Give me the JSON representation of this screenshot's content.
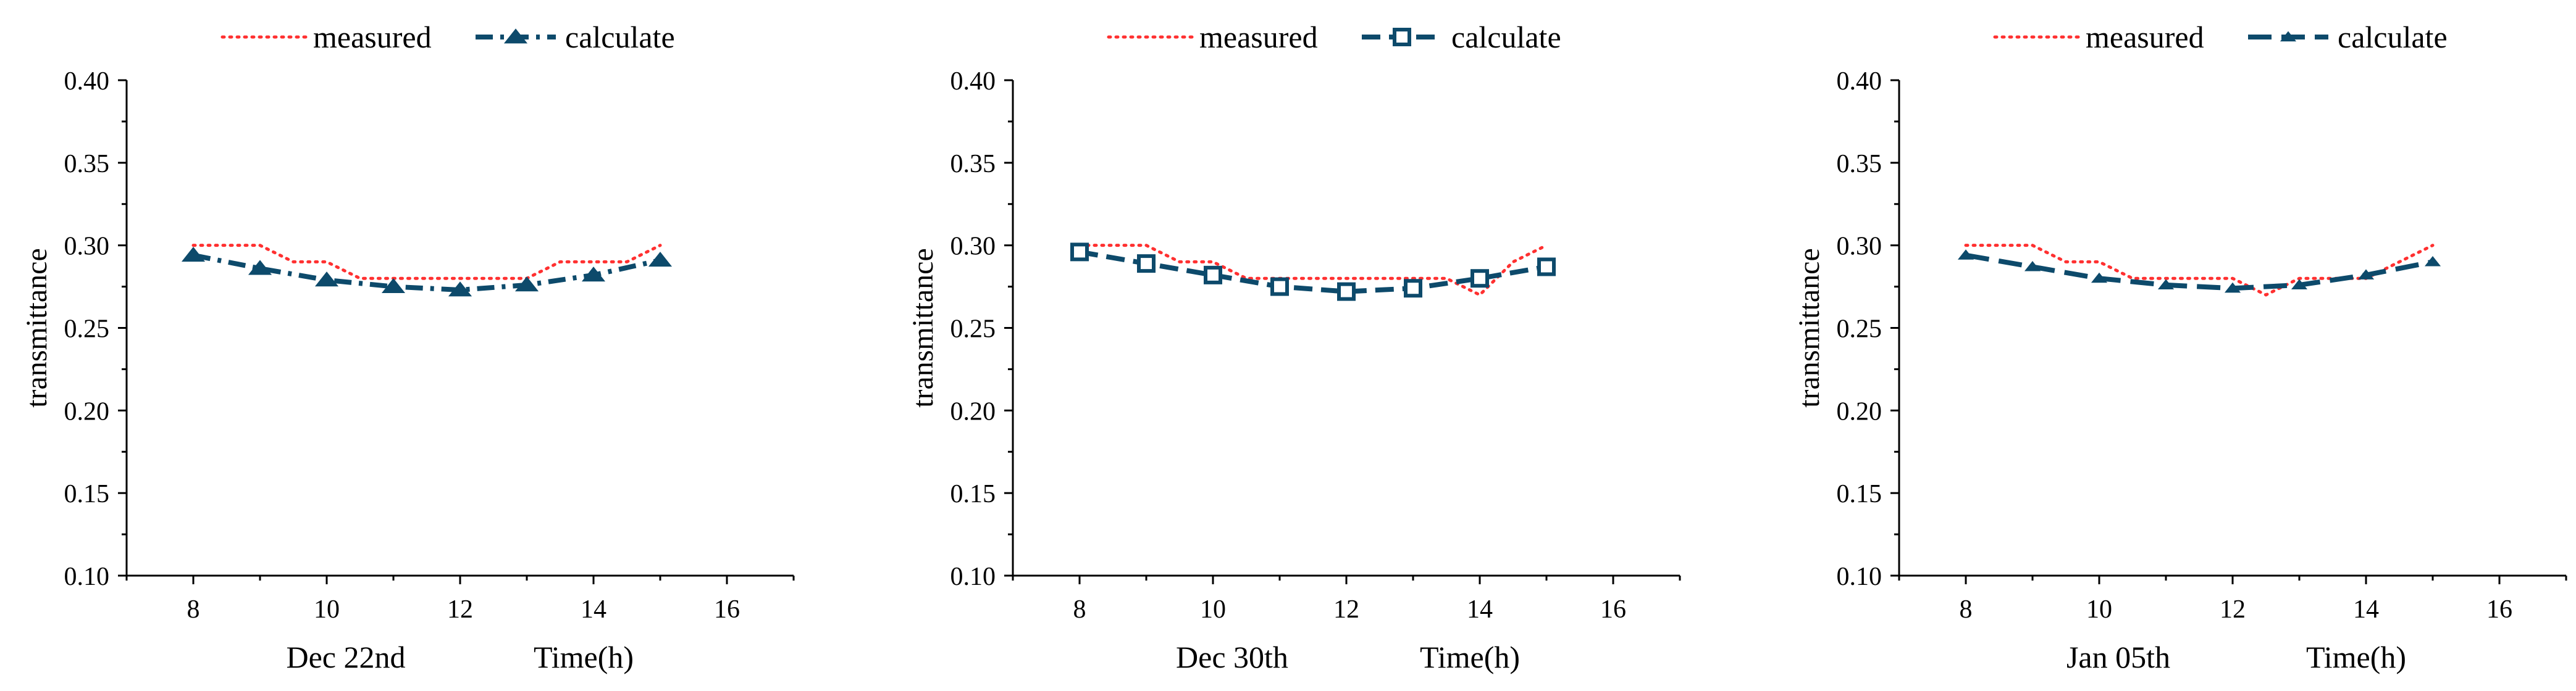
{
  "chart_data": [
    {
      "type": "line",
      "ylabel": "transmittance",
      "xlabel": "Time(h)",
      "date_label": "Dec 22nd",
      "xlim": [
        7,
        17
      ],
      "ylim": [
        0.1,
        0.4
      ],
      "x_ticks": [
        "8",
        "10",
        "12",
        "14",
        "16"
      ],
      "y_ticks": [
        "0.10",
        "0.15",
        "0.20",
        "0.25",
        "0.30",
        "0.35",
        "0.40"
      ],
      "grid": false,
      "legend_position": "top",
      "series": [
        {
          "name": "measured",
          "style": "dotted",
          "color": "#ff3030",
          "x": [
            8,
            9,
            9.5,
            10,
            10.5,
            11,
            12,
            13,
            13.5,
            14,
            14.5,
            15
          ],
          "values": [
            0.3,
            0.3,
            0.29,
            0.29,
            0.28,
            0.28,
            0.28,
            0.28,
            0.29,
            0.29,
            0.29,
            0.3
          ]
        },
        {
          "name": "calculate",
          "style": "dashdot",
          "marker": "triangle-filled",
          "color": "#0d4a6b",
          "x": [
            8,
            9,
            10,
            11,
            12,
            13,
            14,
            15
          ],
          "values": [
            0.294,
            0.286,
            0.279,
            0.275,
            0.273,
            0.276,
            0.282,
            0.291
          ]
        }
      ]
    },
    {
      "type": "line",
      "ylabel": "transmittance",
      "xlabel": "Time(h)",
      "date_label": "Dec 30th",
      "xlim": [
        7,
        17
      ],
      "ylim": [
        0.1,
        0.4
      ],
      "x_ticks": [
        "8",
        "10",
        "12",
        "14",
        "16"
      ],
      "y_ticks": [
        "0.10",
        "0.15",
        "0.20",
        "0.25",
        "0.30",
        "0.35",
        "0.40"
      ],
      "grid": false,
      "legend_position": "top",
      "series": [
        {
          "name": "measured",
          "style": "dotted",
          "color": "#ff3030",
          "x": [
            8,
            9,
            9.5,
            10,
            10.5,
            11,
            12,
            13,
            13.5,
            14,
            14.5,
            15
          ],
          "values": [
            0.3,
            0.3,
            0.29,
            0.29,
            0.28,
            0.28,
            0.28,
            0.28,
            0.28,
            0.27,
            0.29,
            0.3
          ]
        },
        {
          "name": "calculate",
          "style": "dashed",
          "marker": "square-open",
          "color": "#0d4a6b",
          "x": [
            8,
            9,
            10,
            11,
            12,
            13,
            14,
            15
          ],
          "values": [
            0.296,
            0.289,
            0.282,
            0.275,
            0.272,
            0.274,
            0.28,
            0.287
          ]
        }
      ]
    },
    {
      "type": "line",
      "ylabel": "transmittance",
      "xlabel": "Time(h)",
      "date_label": "Jan 05th",
      "xlim": [
        7,
        17
      ],
      "ylim": [
        0.1,
        0.4
      ],
      "x_ticks": [
        "8",
        "10",
        "12",
        "14",
        "16"
      ],
      "y_ticks": [
        "0.10",
        "0.15",
        "0.20",
        "0.25",
        "0.30",
        "0.35",
        "0.40"
      ],
      "grid": false,
      "legend_position": "top",
      "series": [
        {
          "name": "measured",
          "style": "dotted",
          "color": "#ff3030",
          "x": [
            8,
            9,
            9.5,
            10,
            10.5,
            11,
            12,
            12.5,
            13,
            14,
            15
          ],
          "values": [
            0.3,
            0.3,
            0.29,
            0.29,
            0.28,
            0.28,
            0.28,
            0.27,
            0.28,
            0.28,
            0.3
          ]
        },
        {
          "name": "calculate",
          "style": "longdash",
          "marker": "triangle-small",
          "color": "#0d4a6b",
          "x": [
            8,
            9,
            10,
            11,
            12,
            13,
            14,
            15
          ],
          "values": [
            0.294,
            0.287,
            0.28,
            0.276,
            0.274,
            0.276,
            0.282,
            0.29
          ]
        }
      ]
    }
  ]
}
